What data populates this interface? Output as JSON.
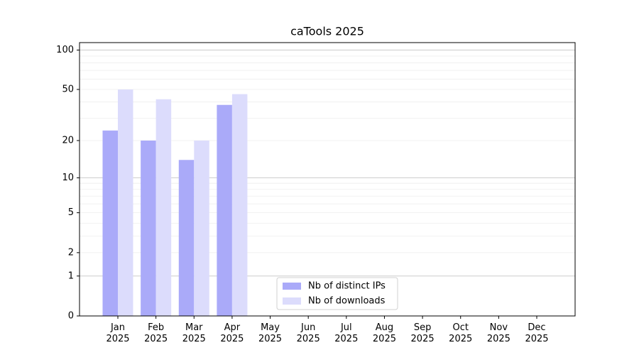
{
  "chart_data": {
    "type": "bar",
    "title": "caTools 2025",
    "scale": "log1p",
    "categories": [
      "Jan 2025",
      "Feb 2025",
      "Mar 2025",
      "Apr 2025",
      "May 2025",
      "Jun 2025",
      "Jul 2025",
      "Aug 2025",
      "Sep 2025",
      "Oct 2025",
      "Nov 2025",
      "Dec 2025"
    ],
    "series": [
      {
        "name": "Nb of distinct IPs",
        "color": "#aaaaf9",
        "values": [
          24,
          20,
          14,
          38,
          null,
          null,
          null,
          null,
          null,
          null,
          null,
          null
        ]
      },
      {
        "name": "Nb of downloads",
        "color": "#dcdcfc",
        "values": [
          50,
          42,
          20,
          46,
          null,
          null,
          null,
          null,
          null,
          null,
          null,
          null
        ]
      }
    ],
    "ylim": [
      0,
      114
    ],
    "yticks": [
      0,
      1,
      2,
      5,
      10,
      20,
      50,
      100
    ],
    "major_gridlines": [
      1,
      10,
      100
    ],
    "minor_gridlines": [
      2,
      3,
      4,
      5,
      6,
      7,
      8,
      9,
      20,
      30,
      40,
      50,
      60,
      70,
      80,
      90
    ],
    "grid": true,
    "legend": "lower center"
  }
}
